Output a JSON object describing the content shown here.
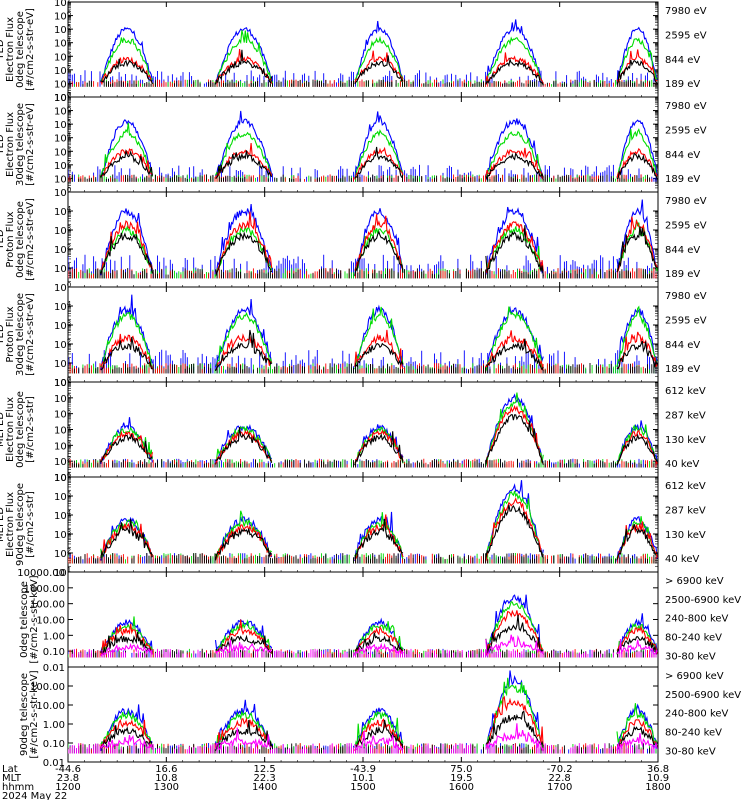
{
  "chart_data": {
    "type": "line",
    "date": "2024 May 22",
    "x_rows": [
      {
        "label": "Lat",
        "values": [
          "-44.6",
          "16.6",
          "12.5",
          "-43.9",
          "75.0",
          "-70.2",
          "36.8"
        ]
      },
      {
        "label": "MLT",
        "values": [
          "23.8",
          "10.8",
          "22.3",
          "10.1",
          "19.5",
          "22.8",
          "10.9"
        ]
      },
      {
        "label": "hhmm",
        "values": [
          "1200",
          "1300",
          "1400",
          "1500",
          "1600",
          "1700",
          "1800"
        ]
      }
    ],
    "xlim": [
      1200,
      1800
    ],
    "colors": {
      "black": "#000000",
      "red": "#ff0000",
      "green": "#00dd00",
      "blue": "#0000ff",
      "magenta": "#ff00ff"
    },
    "panels": [
      {
        "ylabel": [
          "TED",
          "Electron Flux",
          "0deg telescope",
          "[#/cm2-s-str-eV]"
        ],
        "yscale": "log",
        "ylim": [
          1,
          10000000
        ],
        "yticks": [
          {
            "e": "0"
          },
          {
            "e": "1"
          },
          {
            "e": "2"
          },
          {
            "e": "3"
          },
          {
            "e": "4"
          },
          {
            "e": "5"
          },
          {
            "e": "6"
          },
          {
            "e": "7"
          }
        ],
        "legend": [
          {
            "label": "7980 eV",
            "color": "black"
          },
          {
            "label": "2595 eV",
            "color": "red"
          },
          {
            "label": "844 eV",
            "color": "green"
          },
          {
            "label": "189 eV",
            "color": "blue"
          }
        ],
        "series_peaks": {
          "blue": 5.0,
          "green": 4.2,
          "red": 2.8,
          "black": 2.5
        }
      },
      {
        "ylabel": [
          "TED",
          "Electron Flux",
          "30deg telescope",
          "[#/cm2-s-str-eV]"
        ],
        "yscale": "log",
        "ylim": [
          1,
          10000000
        ],
        "yticks": [
          {
            "e": "0"
          },
          {
            "e": "1"
          },
          {
            "e": "2"
          },
          {
            "e": "3"
          },
          {
            "e": "4"
          },
          {
            "e": "5"
          },
          {
            "e": "6"
          },
          {
            "e": "7"
          }
        ],
        "legend": [
          {
            "label": "7980 eV",
            "color": "black"
          },
          {
            "label": "2595 eV",
            "color": "red"
          },
          {
            "label": "844 eV",
            "color": "green"
          },
          {
            "label": "189 eV",
            "color": "blue"
          }
        ],
        "series_peaks": {
          "blue": 5.2,
          "green": 4.3,
          "red": 3.0,
          "black": 2.6
        }
      },
      {
        "ylabel": [
          "TED",
          "Proton Flux",
          "0deg telescope",
          "[#/cm2-s-str-eV]"
        ],
        "yscale": "log",
        "ylim": [
          1,
          100000
        ],
        "yticks": [
          {
            "e": "0"
          },
          {
            "e": "1"
          },
          {
            "e": "2"
          },
          {
            "e": "3"
          },
          {
            "e": "4"
          }
        ],
        "legend": [
          {
            "label": "7980 eV",
            "color": "black"
          },
          {
            "label": "2595 eV",
            "color": "red"
          },
          {
            "label": "844 eV",
            "color": "green"
          },
          {
            "label": "189 eV",
            "color": "blue"
          }
        ],
        "series_peaks": {
          "blue": 4.0,
          "green": 3.0,
          "red": 3.3,
          "black": 2.7
        }
      },
      {
        "ylabel": [
          "TED",
          "Proton Flux",
          "30deg telescope",
          "[#/cm2-s-str-eV]"
        ],
        "yscale": "log",
        "ylim": [
          1,
          100000
        ],
        "yticks": [
          {
            "e": "0"
          },
          {
            "e": "1"
          },
          {
            "e": "2"
          },
          {
            "e": "3"
          },
          {
            "e": "4"
          }
        ],
        "legend": [
          {
            "label": "7980 eV",
            "color": "black"
          },
          {
            "label": "2595 eV",
            "color": "red"
          },
          {
            "label": "844 eV",
            "color": "green"
          },
          {
            "label": "189 eV",
            "color": "blue"
          }
        ],
        "series_peaks": {
          "blue": 3.8,
          "green": 3.5,
          "red": 2.3,
          "black": 1.9
        }
      },
      {
        "ylabel": [
          "MEPED",
          "Electron Flux",
          "0deg telescope",
          "[#/cm2-s-str]"
        ],
        "yscale": "log",
        "ylim": [
          10,
          10000000
        ],
        "yticks": [
          {
            "e": "1"
          },
          {
            "e": "2"
          },
          {
            "e": "3"
          },
          {
            "e": "4"
          },
          {
            "e": "5"
          },
          {
            "e": "6"
          },
          {
            "e": "7"
          }
        ],
        "legend": [
          {
            "label": "612 keV",
            "color": "black"
          },
          {
            "label": "287 keV",
            "color": "red"
          },
          {
            "label": "130 keV",
            "color": "green"
          },
          {
            "label": "40 keV",
            "color": "blue"
          }
        ],
        "series_peaks": {
          "blue": 6.0,
          "green": 5.7,
          "red": 5.3,
          "black": 4.8
        }
      },
      {
        "ylabel": [
          "MEPED",
          "Electron Flux",
          "90deg telescope",
          "[#/cm2-s-str]"
        ],
        "yscale": "log",
        "ylim": [
          10,
          1000000
        ],
        "yticks": [
          {
            "e": "1"
          },
          {
            "e": "2"
          },
          {
            "e": "3"
          },
          {
            "e": "4"
          },
          {
            "e": "5"
          },
          {
            "e": "6"
          }
        ],
        "legend": [
          {
            "label": "612 keV",
            "color": "black"
          },
          {
            "label": "287 keV",
            "color": "red"
          },
          {
            "label": "130 keV",
            "color": "green"
          },
          {
            "label": "40 keV",
            "color": "blue"
          }
        ],
        "series_peaks": {
          "blue": 5.4,
          "green": 5.1,
          "red": 4.7,
          "black": 4.3
        }
      },
      {
        "ylabel": [
          "0deg telescope",
          "[#/cm2-s-str-keV]"
        ],
        "yscale": "log",
        "ylim": [
          0.01,
          10000
        ],
        "yticks": [
          {
            "label": "10000.00"
          },
          {
            "label": "1000.00"
          },
          {
            "label": "100.00"
          },
          {
            "label": "10.00"
          },
          {
            "label": "1.00"
          },
          {
            "label": "0.10"
          },
          {
            "label": "0.01"
          }
        ],
        "legend": [
          {
            "label": "> 6900 keV",
            "color": "magenta"
          },
          {
            "label": "2500-6900 keV",
            "color": "black"
          },
          {
            "label": "240-800 keV",
            "color": "red"
          },
          {
            "label": "80-240 keV",
            "color": "green"
          },
          {
            "label": "30-80 keV",
            "color": "blue"
          }
        ],
        "series_peaks": {
          "blue": 2.4,
          "green": 2.0,
          "red": 1.4,
          "black": 0.5,
          "magenta": -0.5
        }
      },
      {
        "ylabel": [
          "90deg telescope",
          "[#/cm2-s-str-keV]"
        ],
        "yscale": "log",
        "ylim": [
          0.01,
          1000
        ],
        "yticks": [
          {
            "label": "100.00"
          },
          {
            "label": "10.00"
          },
          {
            "label": "1.00"
          },
          {
            "label": "0.10"
          },
          {
            "label": "0.01"
          }
        ],
        "legend": [
          {
            "label": "> 6900 keV",
            "color": "magenta"
          },
          {
            "label": "2500-6900 keV",
            "color": "black"
          },
          {
            "label": "240-800 keV",
            "color": "red"
          },
          {
            "label": "80-240 keV",
            "color": "green"
          },
          {
            "label": "30-80 keV",
            "color": "blue"
          }
        ],
        "series_peaks": {
          "blue": 2.3,
          "green": 1.9,
          "red": 1.2,
          "black": 0.4,
          "magenta": -0.6
        }
      }
    ]
  }
}
